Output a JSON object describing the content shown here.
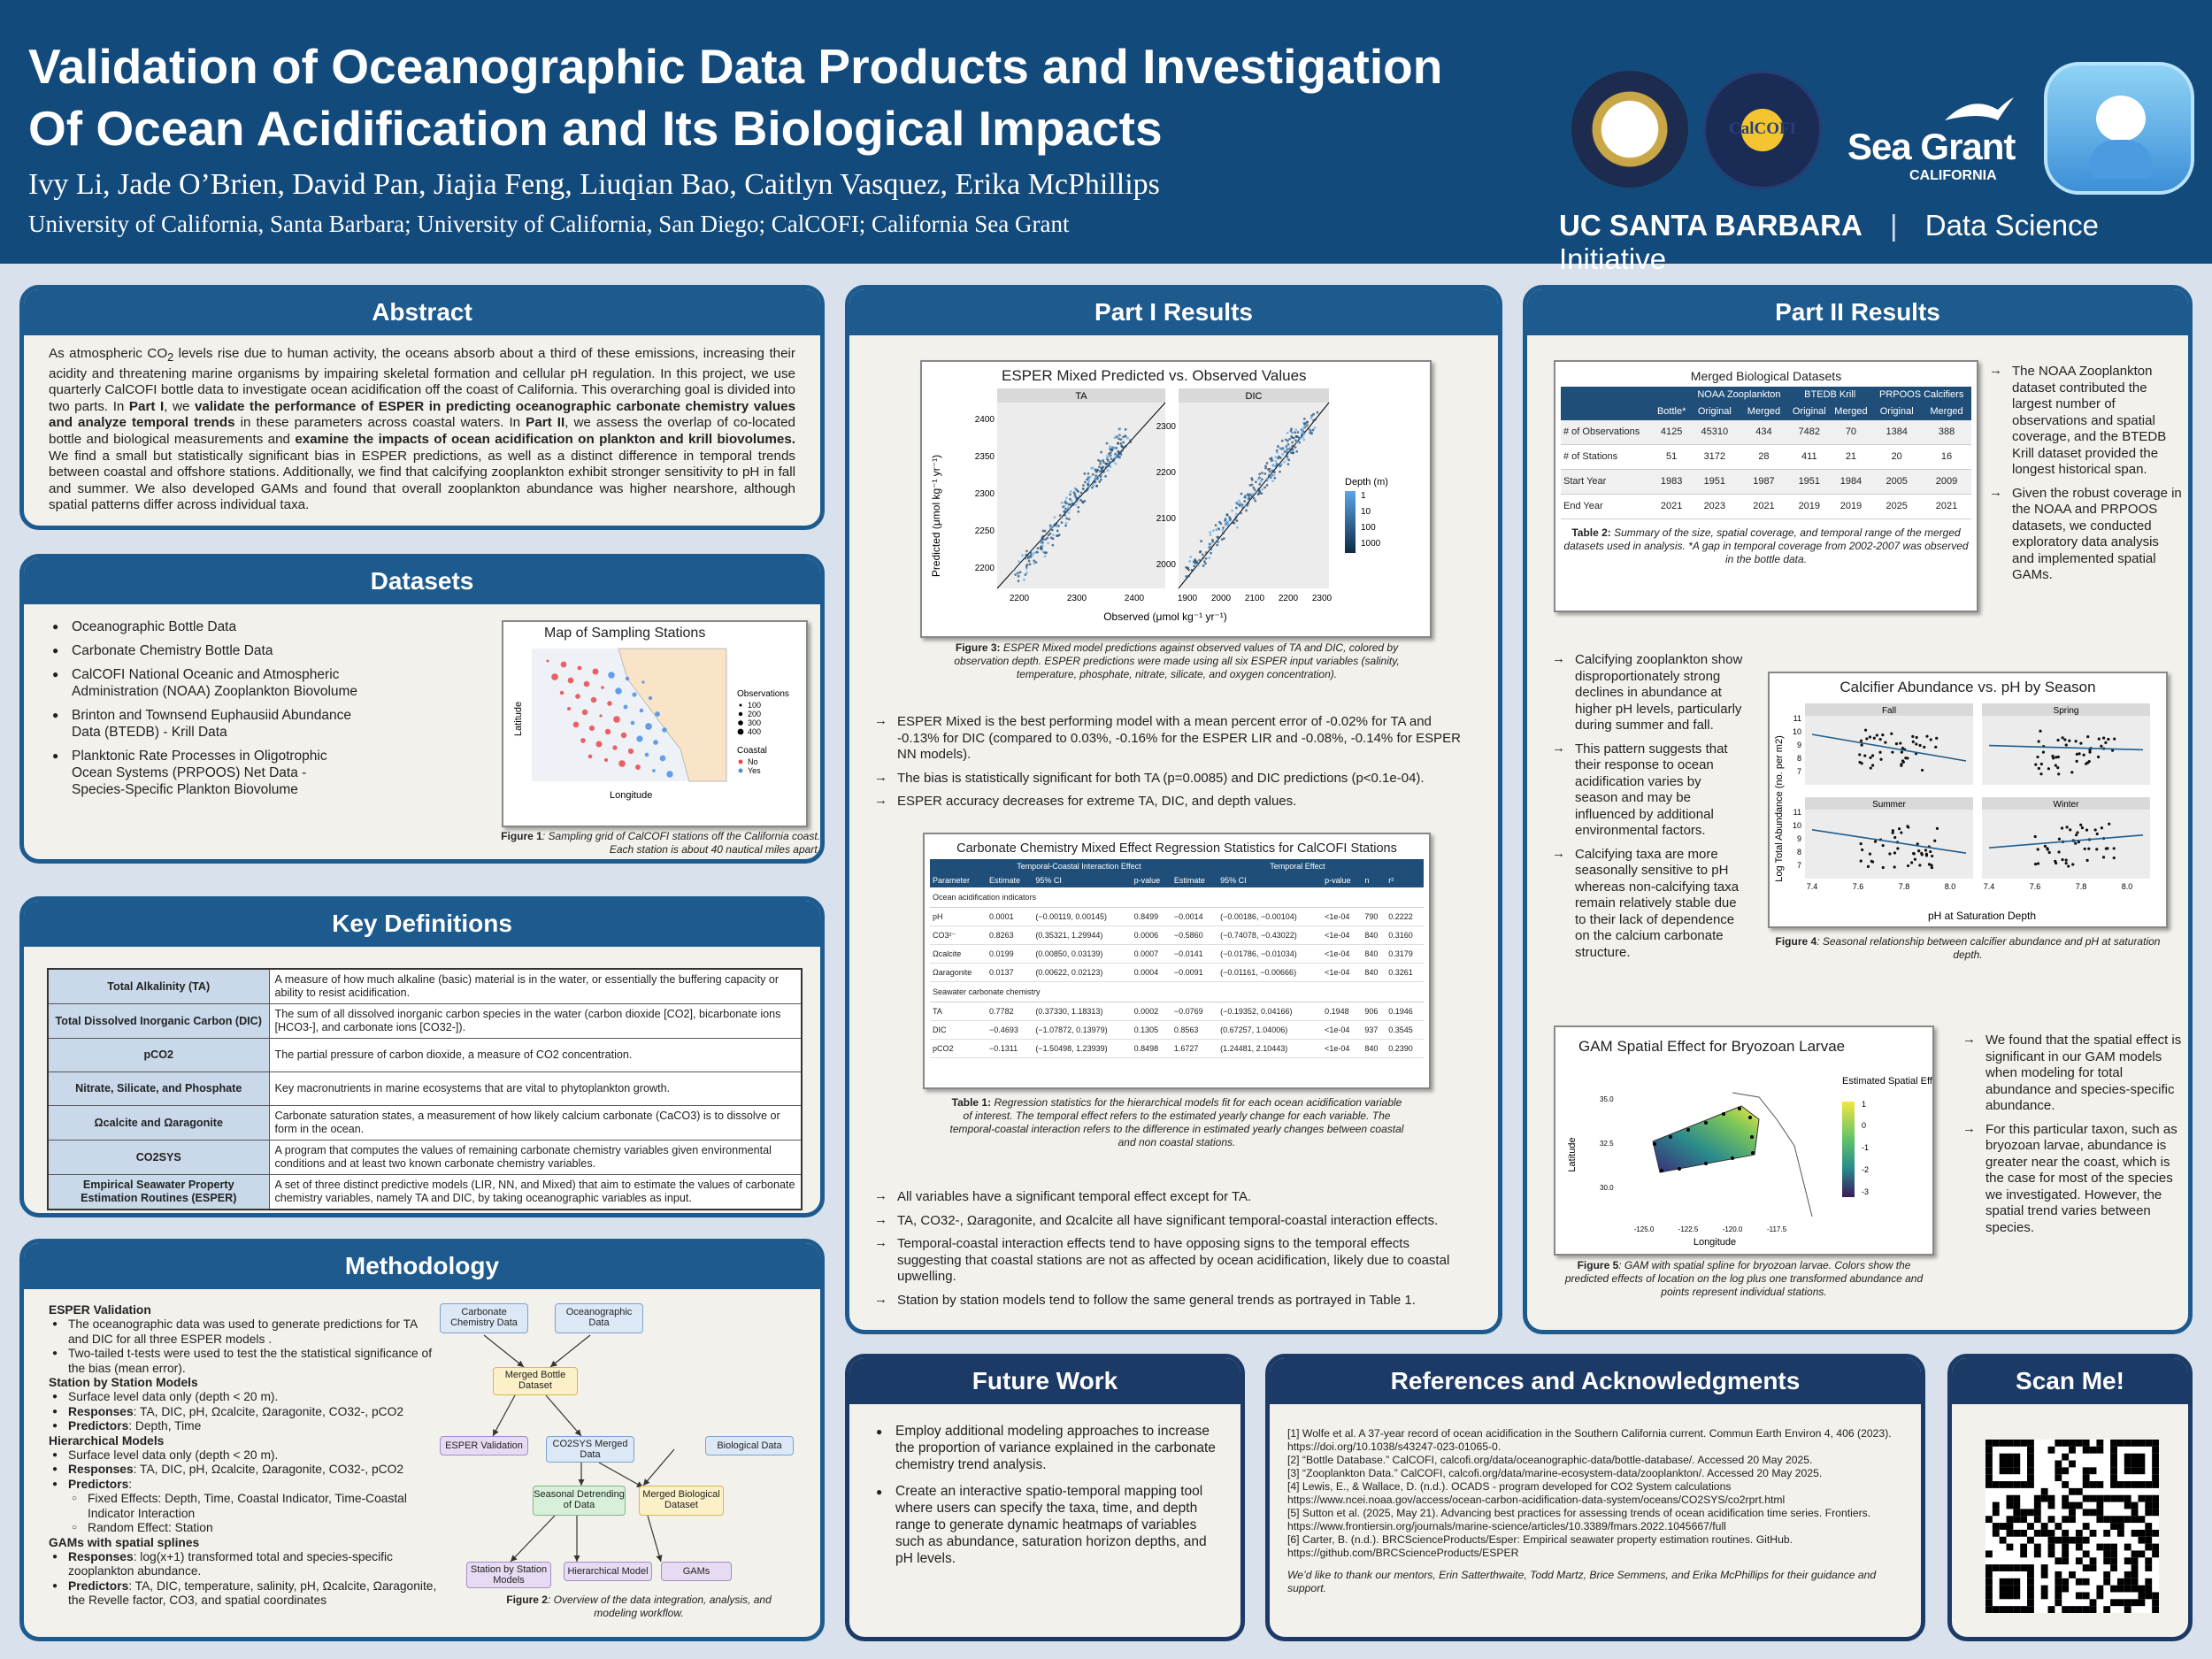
{
  "header": {
    "title_line1": "Validation of Oceanographic Data Products and Investigation",
    "title_line2": "Of Ocean Acidification and Its Biological Impacts",
    "authors": "Ivy Li, Jade O’Brien, David Pan, Jiajia Feng, Liuqian Bao, Caitlyn Vasquez, Erika McPhillips",
    "affiliations": "University of California, Santa Barbara; University of California, San Diego; CalCOFI; California Sea Grant",
    "ucsb": "UC SANTA BARBARA",
    "dsi": "Data Science Initiative",
    "seagrant": "Sea Grant",
    "seagrant_sub": "CALIFORNIA",
    "calcofi": "CalCOFI"
  },
  "abstract": {
    "title": "Abstract",
    "text_a": "As atmospheric CO",
    "text_b": " levels rise due to human activity, the oceans absorb about a third of these emissions, increasing their acidity and threatening marine organisms by impairing skeletal formation and cellular pH regulation. In this project, we use quarterly CalCOFI bottle data to investigate ocean acidification off the coast of California. This overarching goal is divided into two parts. In ",
    "part1": "Part I",
    "text_c": ", we ",
    "bold1": "validate the performance of ESPER in predicting oceanographic carbonate chemistry values and analyze temporal trends",
    "text_d": " in these parameters across coastal waters. In ",
    "part2": "Part II",
    "text_e": ", we assess the overlap of co-located bottle and biological measurements and ",
    "bold2": "examine the impacts of ocean acidification on plankton and krill biovolumes.",
    "text_f": " We find a small but statistically significant bias in ESPER predictions, as well as a distinct difference in temporal trends between coastal and offshore stations. Additionally, we find that calcifying zooplankton exhibit stronger sensitivity to pH in fall and summer. We also developed GAMs and found that overall zooplankton abundance was higher nearshore, although spatial patterns differ across individual taxa."
  },
  "datasets": {
    "title": "Datasets",
    "items": [
      "Oceanographic Bottle Data",
      "Carbonate Chemistry Bottle Data",
      "CalCOFI National Oceanic and Atmospheric Administration (NOAA) Zooplankton Biovolume",
      "Brinton and Townsend Euphausiid Abundance Data (BTEDB) - Krill Data",
      "Planktonic Rate Processes in Oligotrophic Ocean Systems (PRPOOS) Net Data - Species-Specific Plankton Biovolume"
    ],
    "map_title": "Map of Sampling Stations",
    "map_x": "Longitude",
    "map_y": "Latitude",
    "legend_obs": "Observations",
    "obs_values": [
      "100",
      "200",
      "300",
      "400"
    ],
    "legend_coastal": "Coastal",
    "coastal_values": [
      "No",
      "Yes"
    ],
    "fig1_label": "Figure 1",
    "fig1_text": ": Sampling grid of CalCOFI stations off the California coast. Each station is about 40 nautical miles apart."
  },
  "definitions": {
    "title": "Key Definitions",
    "rows": [
      {
        "term": "Total Alkalinity (TA)",
        "def": "A measure of how much alkaline (basic) material is in the water, or essentially the buffering capacity or ability to resist acidification."
      },
      {
        "term": "Total Dissolved Inorganic Carbon (DIC)",
        "def": "The sum of all dissolved inorganic carbon species in the water (carbon dioxide [CO2], bicarbonate ions [HCO3-], and carbonate ions [CO32-])."
      },
      {
        "term": "pCO2",
        "def": "The partial pressure of carbon dioxide, a measure of CO2 concentration."
      },
      {
        "term": "Nitrate, Silicate, and Phosphate",
        "def": "Key macronutrients in marine ecosystems that are vital to phytoplankton growth."
      },
      {
        "term": "Ωcalcite and Ωaragonite",
        "def": "Carbonate saturation states, a measurement of how likely calcium carbonate (CaCO3) is to dissolve or form in the ocean."
      },
      {
        "term": "CO2SYS",
        "def": "A program that computes the values of remaining carbonate chemistry variables given environmental conditions and at least two known carbonate chemistry variables."
      },
      {
        "term": "Empirical Seawater Property Estimation Routines (ESPER)",
        "def": "A set of three distinct predictive models (LIR, NN, and Mixed) that aim to estimate the values of carbonate chemistry variables, namely TA and DIC, by taking oceanographic variables as input."
      }
    ]
  },
  "methodology": {
    "title": "Methodology",
    "lines": [
      {
        "t": "h",
        "text": "ESPER Validation"
      },
      {
        "t": "b",
        "text": "The oceanographic data was used to generate predictions for TA and DIC for all three ESPER models ."
      },
      {
        "t": "b",
        "text": "Two-tailed t-tests were used to test the the statistical significance of the bias (mean error)."
      },
      {
        "t": "h",
        "text": "Station by Station Models"
      },
      {
        "t": "b",
        "text": "Surface level data only (depth < 20 m)."
      },
      {
        "t": "bk",
        "k": "Responses",
        "text": ": TA, DIC, pH, Ωcalcite, Ωaragonite, CO32-, pCO2"
      },
      {
        "t": "bk",
        "k": "Predictors",
        "text": ": Depth, Time"
      },
      {
        "t": "h",
        "text": "Hierarchical Models"
      },
      {
        "t": "b",
        "text": "Surface level data only (depth < 20 m)."
      },
      {
        "t": "bk",
        "k": "Responses",
        "text": ": TA, DIC, pH, Ωcalcite, Ωaragonite, CO32-, pCO2"
      },
      {
        "t": "bk",
        "k": "Predictors",
        "text": ":"
      },
      {
        "t": "c",
        "text": "Fixed Effects: Depth, Time, Coastal Indicator, Time-Coastal Indicator Interaction"
      },
      {
        "t": "c",
        "text": "Random Effect: Station"
      },
      {
        "t": "h",
        "text": "GAMs with spatial splines"
      },
      {
        "t": "bk",
        "k": "Responses",
        "text": ": log(x+1) transformed total and species-specific zooplankton abundance."
      },
      {
        "t": "bk",
        "k": "Predictors",
        "text": ": TA, DIC, temperature, salinity, pH, Ωcalcite, Ωaragonite, the Revelle factor, CO3, and spatial coordinates"
      }
    ],
    "flow": {
      "carbonate": "Carbonate Chemistry Data",
      "oceano": "Oceanographic Data",
      "merged_bottle": "Merged Bottle Dataset",
      "esper": "ESPER Validation",
      "co2sys": "CO2SYS Merged Data",
      "bio": "Biological Data",
      "seasonal": "Seasonal Detrending of Data",
      "merged_bio": "Merged Biological Dataset",
      "station": "Station by Station Models",
      "hier": "Hierarchical Model",
      "gams": "GAMs"
    },
    "fig2_label": "Figure 2",
    "fig2_text": ": Overview of the data integration, analysis, and modeling workflow."
  },
  "part1": {
    "title": "Part I Results",
    "fig3_title": "ESPER Mixed Predicted vs. Observed Values",
    "facet_ta": "TA",
    "facet_dic": "DIC",
    "ylabel": "Predicted (μmol kg⁻¹ yr⁻¹)",
    "xlabel": "Observed (μmol kg⁻¹ yr⁻¹)",
    "ta_ticks_y": [
      "2400",
      "2350",
      "2300",
      "2250",
      "2200"
    ],
    "ta_ticks_x": [
      "2200",
      "2300",
      "2400"
    ],
    "dic_ticks_y": [
      "2300",
      "2200",
      "2100",
      "2000"
    ],
    "dic_ticks_x": [
      "1900",
      "2000",
      "2100",
      "2200",
      "2300"
    ],
    "legend_title": "Depth (m)",
    "legend_values": [
      "1",
      "10",
      "100",
      "1000"
    ],
    "fig3_label": "Figure 3:",
    "fig3_text": " ESPER Mixed model predictions against observed values of TA and DIC, colored by observation depth. ESPER predictions were made using all six ESPER input variables (salinity, temperature, phosphate, nitrate, silicate, and oxygen concentration).",
    "bullets1": [
      "ESPER Mixed is the best performing model with a mean percent error of -0.02% for TA and -0.13% for DIC (compared to 0.03%, -0.16% for the ESPER LIR and -0.08%, -0.14% for ESPER NN models).",
      "The bias is statistically significant for both TA (p=0.0085) and DIC predictions (p<0.1e-04).",
      "ESPER accuracy decreases for extreme TA, DIC, and depth values."
    ],
    "table_title": "Carbonate Chemistry Mixed Effect Regression Statistics for CalCOFI Stations",
    "group1": "Temporal-Coastal Interaction Effect",
    "group2": "Temporal Effect",
    "cols": [
      "Parameter",
      "Estimate",
      "95% CI",
      "p-value",
      "Estimate",
      "95% CI",
      "p-value",
      "n",
      "r²"
    ],
    "sec1": "Ocean acidification indicators",
    "sec2": "Seawater carbonate chemistry",
    "rows1": [
      [
        "pH",
        "0.0001",
        "(−0.00119, 0.00145)",
        "0.8499",
        "−0.0014",
        "(−0.00186, −0.00104)",
        "<1e-04",
        "790",
        "0.2222"
      ],
      [
        "CO3²⁻",
        "0.8263",
        "(0.35321, 1.29944)",
        "0.0006",
        "−0.5860",
        "(−0.74078, −0.43022)",
        "<1e-04",
        "840",
        "0.3160"
      ],
      [
        "Ωcalcite",
        "0.0199",
        "(0.00850, 0.03139)",
        "0.0007",
        "−0.0141",
        "(−0.01786, −0.01034)",
        "<1e-04",
        "840",
        "0.3179"
      ],
      [
        "Ωaragonite",
        "0.0137",
        "(0.00622, 0.02123)",
        "0.0004",
        "−0.0091",
        "(−0.01161, −0.00666)",
        "<1e-04",
        "840",
        "0.3261"
      ]
    ],
    "rows2": [
      [
        "TA",
        "0.7782",
        "(0.37330, 1.18313)",
        "0.0002",
        "−0.0769",
        "(−0.19352, 0.04166)",
        "0.1948",
        "906",
        "0.1946"
      ],
      [
        "DIC",
        "−0.4693",
        "(−1.07872, 0.13979)",
        "0.1305",
        "0.8563",
        "(0.67257, 1.04006)",
        "<1e-04",
        "937",
        "0.3545"
      ],
      [
        "pCO2",
        "−0.1311",
        "(−1.50498, 1.23939)",
        "0.8498",
        "1.6727",
        "(1.24481, 2.10443)",
        "<1e-04",
        "840",
        "0.2390"
      ]
    ],
    "table1_label": "Table 1:",
    "table1_text": " Regression statistics for the hierarchical models fit for each ocean acidification variable of interest. The temporal effect refers to the estimated yearly change for each variable. The temporal-coastal interaction refers to the difference in estimated yearly changes between coastal and non coastal stations.",
    "bullets2": [
      "All variables have a significant temporal effect except for TA.",
      "TA, CO32-, Ωaragonite, and Ωcalcite all have significant temporal-coastal interaction effects.",
      "Temporal-coastal interaction effects tend to have opposing signs to the temporal effects suggesting that coastal stations are not as affected by ocean acidification, likely due to coastal upwelling.",
      "Station by station models tend to follow the same general trends as portrayed in Table 1."
    ]
  },
  "part2": {
    "title": "Part II Results",
    "t2_title": "Merged Biological Datasets",
    "t2_groups": [
      "NOAA Zooplankton",
      "BTEDB Krill",
      "PRPOOS Calcifiers"
    ],
    "t2_sub": [
      "Bottle*",
      "Original",
      "Merged",
      "Original",
      "Merged",
      "Original",
      "Merged"
    ],
    "t2_rows": [
      [
        "# of Observations",
        "4125",
        "45310",
        "434",
        "7482",
        "70",
        "1384",
        "388"
      ],
      [
        "# of Stations",
        "51",
        "3172",
        "28",
        "411",
        "21",
        "20",
        "16"
      ],
      [
        "Start Year",
        "1983",
        "1951",
        "1987",
        "1951",
        "1984",
        "2005",
        "2009"
      ],
      [
        "End Year",
        "2021",
        "2023",
        "2021",
        "2019",
        "2019",
        "2025",
        "2021"
      ]
    ],
    "t2_label": "Table 2:",
    "t2_text": " Summary of the size, spatial coverage, and temporal range of the merged datasets used in analysis. *A gap in temporal coverage from 2002-2007 was observed in the bottle data.",
    "bullets_a": [
      "The NOAA Zooplankton dataset contributed the largest number of observations and spatial coverage, and the BTEDB Krill dataset provided the longest historical span.",
      "Given the robust coverage in the NOAA and PRPOOS datasets, we conducted exploratory data analysis and implemented spatial GAMs."
    ],
    "bullets_b": [
      "Calcifying zooplankton show disproportionately strong declines in abundance at higher pH levels, particularly during summer and fall.",
      "This pattern suggests that their response to ocean acidification varies by season and may be influenced by additional environmental factors.",
      "Calcifying taxa are more seasonally sensitive to pH whereas non-calcifying taxa remain relatively stable due to their lack of dependence on the calcium carbonate structure."
    ],
    "fig4_title": "Calcifier Abundance vs. pH by Season",
    "seasons": [
      "Fall",
      "Spring",
      "Summer",
      "Winter"
    ],
    "fig4_y": "Log Total Abundance (no. per m2)",
    "fig4_x": "pH at Saturation Depth",
    "fig4_yticks": [
      "11",
      "10",
      "9",
      "8",
      "7"
    ],
    "fig4_xticks": [
      "7.4",
      "7.6",
      "7.8",
      "8.0"
    ],
    "fig4_label": "Figure 4",
    "fig4_text": ": Seasonal relationship between calcifier abundance and pH at saturation depth.",
    "fig5_title": "GAM Spatial Effect for Bryozoan Larvae",
    "fig5_legend": "Estimated Spatial Effect",
    "fig5_legend_values": [
      "1",
      "0",
      "-1",
      "-2",
      "-3"
    ],
    "fig5_x": "Longitude",
    "fig5_y": "Latitude",
    "fig5_xticks": [
      "-125.0",
      "-122.5",
      "-120.0",
      "-117.5"
    ],
    "fig5_yticks": [
      "35.0",
      "32.5",
      "30.0"
    ],
    "fig5_label": "Figure 5",
    "fig5_text": ": GAM with spatial spline for bryozoan larvae. Colors show the predicted effects of location on the log plus one transformed abundance and points represent individual stations.",
    "bullets_c": [
      "We found that the spatial effect is significant in our GAM models when modeling for total abundance and species-specific abundance.",
      "For this particular taxon, such as bryozoan larvae, abundance is greater near the coast, which is the case for most of the species we investigated. However, the spatial trend varies between species."
    ]
  },
  "future": {
    "title": "Future Work",
    "items": [
      "Employ additional modeling approaches to increase the proportion of variance explained in the carbonate chemistry trend analysis.",
      "Create an interactive spatio-temporal mapping tool where users can specify the taxa, time, and depth range to generate dynamic heatmaps of variables such as abundance, saturation horizon depths, and pH levels."
    ]
  },
  "references": {
    "title": "References and Acknowledgments",
    "items": [
      "[1] Wolfe et al. A 37-year record of ocean acidification in the Southern California current. Commun Earth Environ 4, 406 (2023). https://doi.org/10.1038/s43247-023-01065-0.",
      "[2] “Bottle Database.” CalCOFI, calcofi.org/data/oceanographic-data/bottle-database/. Accessed 20 May 2025.",
      "[3] “Zooplankton Data.” CalCOFI, calcofi.org/data/marine-ecosystem-data/zooplankton/. Accessed 20 May 2025.",
      "[4] Lewis, E., & Wallace, D. (n.d.). OCADS - program developed for CO2 System calculations https://www.ncei.noaa.gov/access/ocean-carbon-acidification-data-system/oceans/CO2SYS/co2rprt.html",
      "[5] Sutton et al. (2025, May 21). Advancing best practices for assessing trends of ocean acidification time series. Frontiers. https://www.frontiersin.org/journals/marine-science/articles/10.3389/fmars.2022.1045667/full",
      "[6] Carter, B. (n.d.). BRCScienceProducts/Esper: Empirical seawater property estimation routines. GitHub. https://github.com/BRCScienceProducts/ESPER"
    ],
    "ack": "We’d like to thank our mentors, Erin Satterthwaite, Todd Martz, Brice Semmens, and Erika McPhillips for their guidance and support."
  },
  "scan": {
    "title": "Scan Me!"
  },
  "colors": {
    "header": "#134a7c",
    "panel_header": "#1d5a8e",
    "panel_dark": "#1b3a66",
    "table_header": "#1f4e79",
    "map_coastal_no": "#e8474b",
    "map_coastal_yes": "#4a8fe7"
  }
}
